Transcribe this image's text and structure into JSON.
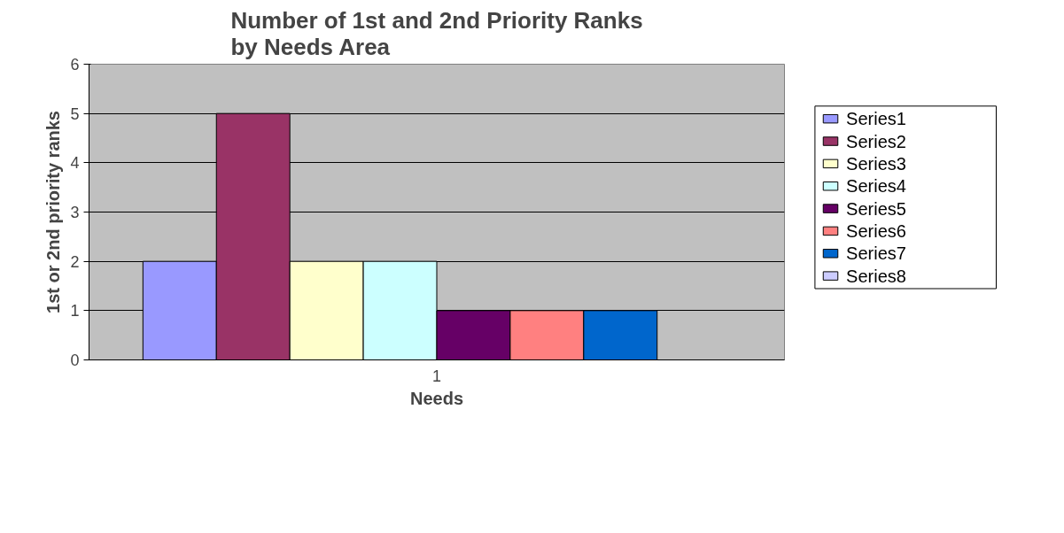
{
  "chart_data": {
    "type": "bar",
    "title": "Number of 1st and 2nd Priority Ranks\nby Needs Area",
    "xlabel": "Needs",
    "ylabel": "1st or 2nd priority ranks",
    "categories": [
      "1"
    ],
    "series": [
      {
        "name": "Series1",
        "color": "#9999ff",
        "values": [
          2
        ]
      },
      {
        "name": "Series2",
        "color": "#993366",
        "values": [
          5
        ]
      },
      {
        "name": "Series3",
        "color": "#ffffcc",
        "values": [
          2
        ]
      },
      {
        "name": "Series4",
        "color": "#ccffff",
        "values": [
          2
        ]
      },
      {
        "name": "Series5",
        "color": "#660066",
        "values": [
          1
        ]
      },
      {
        "name": "Series6",
        "color": "#ff8080",
        "values": [
          1
        ]
      },
      {
        "name": "Series7",
        "color": "#0066cc",
        "values": [
          1
        ]
      },
      {
        "name": "Series8",
        "color": "#ccccff",
        "values": [
          0
        ]
      }
    ],
    "ylim": [
      0,
      6
    ],
    "yticks": [
      0,
      1,
      2,
      3,
      4,
      5,
      6
    ],
    "grid": "y",
    "legend": "right"
  }
}
